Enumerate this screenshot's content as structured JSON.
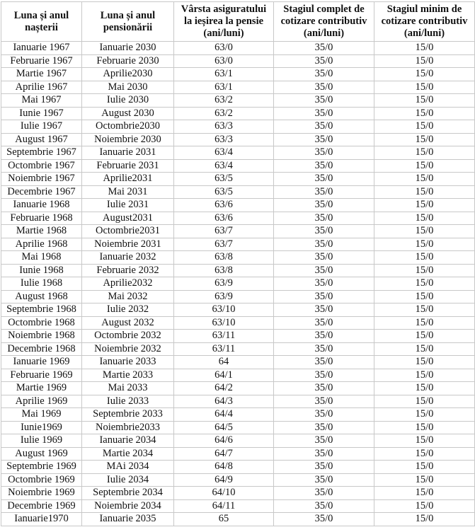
{
  "headers": [
    [
      "Luna și anul",
      "nașterii"
    ],
    [
      "Luna și anul",
      "pensionării"
    ],
    [
      "Vârsta asiguratului",
      "la ieșirea la pensie",
      "(ani/luni)"
    ],
    [
      "Stagiul complet de",
      "cotizare contributiv",
      "(ani/luni)"
    ],
    [
      "Stagiul minim de",
      "cotizare contributiv",
      "(ani/luni)"
    ]
  ],
  "rows": [
    [
      "Ianuarie 1967",
      "Ianuarie 2030",
      "63/0",
      "35/0",
      "15/0"
    ],
    [
      "Februarie 1967",
      "Februarie 2030",
      "63/0",
      "35/0",
      "15/0"
    ],
    [
      "Martie 1967",
      "Aprilie2030",
      "63/1",
      "35/0",
      "15/0"
    ],
    [
      "Aprilie 1967",
      "Mai 2030",
      "63/1",
      "35/0",
      "15/0"
    ],
    [
      "Mai 1967",
      "Iulie 2030",
      "63/2",
      "35/0",
      "15/0"
    ],
    [
      "Iunie 1967",
      "August 2030",
      "63/2",
      "35/0",
      "15/0"
    ],
    [
      "Iulie 1967",
      "Octombrie2030",
      "63/3",
      "35/0",
      "15/0"
    ],
    [
      "August 1967",
      "Noiembrie 2030",
      "63/3",
      "35/0",
      "15/0"
    ],
    [
      "Septembrie 1967",
      "Ianuarie 2031",
      "63/4",
      "35/0",
      "15/0"
    ],
    [
      "Octombrie 1967",
      "Februarie 2031",
      "63/4",
      "35/0",
      "15/0"
    ],
    [
      "Noiembrie 1967",
      "Aprilie2031",
      "63/5",
      "35/0",
      "15/0"
    ],
    [
      "Decembrie 1967",
      "Mai 2031",
      "63/5",
      "35/0",
      "15/0"
    ],
    [
      "Ianuarie 1968",
      "Iulie 2031",
      "63/6",
      "35/0",
      "15/0"
    ],
    [
      "Februarie 1968",
      "August2031",
      "63/6",
      "35/0",
      "15/0"
    ],
    [
      "Martie 1968",
      "Octombrie2031",
      "63/7",
      "35/0",
      "15/0"
    ],
    [
      "Aprilie 1968",
      "Noiembrie 2031",
      "63/7",
      "35/0",
      "15/0"
    ],
    [
      "Mai 1968",
      "Ianuarie 2032",
      "63/8",
      "35/0",
      "15/0"
    ],
    [
      "Iunie 1968",
      "Februarie 2032",
      "63/8",
      "35/0",
      "15/0"
    ],
    [
      "Iulie 1968",
      "Aprilie2032",
      "63/9",
      "35/0",
      "15/0"
    ],
    [
      "August 1968",
      "Mai 2032",
      "63/9",
      "35/0",
      "15/0"
    ],
    [
      "Septembrie 1968",
      "Iulie 2032",
      "63/10",
      "35/0",
      "15/0"
    ],
    [
      "Octombrie 1968",
      "August 2032",
      "63/10",
      "35/0",
      "15/0"
    ],
    [
      "Noiembrie 1968",
      "Octombrie 2032",
      "63/11",
      "35/0",
      "15/0"
    ],
    [
      "Decembrie 1968",
      "Noiembrie 2032",
      "63/11",
      "35/0",
      "15/0"
    ],
    [
      "Ianuarie 1969",
      "Ianuarie 2033",
      "64",
      "35/0",
      "15/0"
    ],
    [
      "Februarie 1969",
      "Martie 2033",
      "64/1",
      "35/0",
      "15/0"
    ],
    [
      "Martie 1969",
      "Mai 2033",
      "64/2",
      "35/0",
      "15/0"
    ],
    [
      "Aprilie 1969",
      "Iulie 2033",
      "64/3",
      "35/0",
      "15/0"
    ],
    [
      "Mai 1969",
      "Septembrie 2033",
      "64/4",
      "35/0",
      "15/0"
    ],
    [
      "Iunie1969",
      "Noiembrie2033",
      "64/5",
      "35/0",
      "15/0"
    ],
    [
      "Iulie 1969",
      "Ianuarie 2034",
      "64/6",
      "35/0",
      "15/0"
    ],
    [
      "August 1969",
      "Martie 2034",
      "64/7",
      "35/0",
      "15/0"
    ],
    [
      "Septembrie 1969",
      "MAi 2034",
      "64/8",
      "35/0",
      "15/0"
    ],
    [
      "Octombrie 1969",
      "Iulie 2034",
      "64/9",
      "35/0",
      "15/0"
    ],
    [
      "Noiembrie 1969",
      "Septembrie 2034",
      "64/10",
      "35/0",
      "15/0"
    ],
    [
      "Decembrie 1969",
      "Noiembrie 2034",
      "64/11",
      "35/0",
      "15/0"
    ],
    [
      "Ianuarie1970",
      "Ianuarie 2035",
      "65",
      "35/0",
      "15/0"
    ]
  ]
}
